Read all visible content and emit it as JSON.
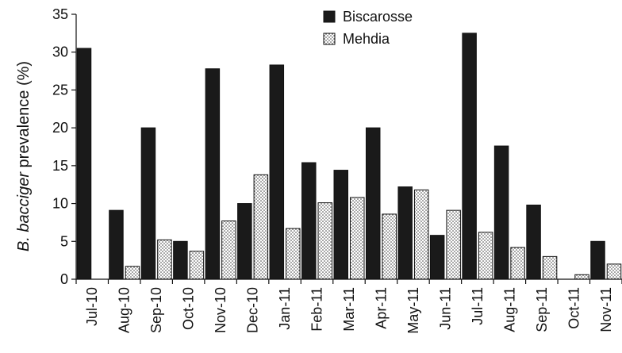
{
  "chart_data": {
    "type": "bar",
    "categories": [
      "Jul-10",
      "Aug-10",
      "Sep-10",
      "Oct-10",
      "Nov-10",
      "Dec-10",
      "Jan-11",
      "Feb-11",
      "Mar-11",
      "Apr-11",
      "May-11",
      "Jun-11",
      "Jul-11",
      "Aug-11",
      "Sep-11",
      "Oct-11",
      "Nov-11"
    ],
    "series": [
      {
        "name": "Biscarosse",
        "color": "#1a1a1a",
        "pattern": "solid",
        "values": [
          30.5,
          9.1,
          20.0,
          5.0,
          27.8,
          10.0,
          28.3,
          15.4,
          14.4,
          20.0,
          12.2,
          5.8,
          32.5,
          17.6,
          9.8,
          0,
          5.0
        ]
      },
      {
        "name": "Mehdia",
        "color": "#ffffff",
        "pattern": "dotted",
        "values": [
          0,
          1.7,
          5.2,
          3.7,
          7.7,
          13.8,
          6.7,
          10.1,
          10.8,
          8.6,
          11.8,
          9.1,
          6.2,
          4.2,
          3.0,
          0.6,
          2.0
        ]
      }
    ],
    "ylabel_prefix": "B. bacciger",
    "ylabel_suffix": " prevalence (%)",
    "yticks": [
      0,
      5,
      10,
      15,
      20,
      25,
      30,
      35
    ],
    "ylim": [
      0,
      35
    ],
    "grid": false,
    "legend_position": "top-center"
  }
}
